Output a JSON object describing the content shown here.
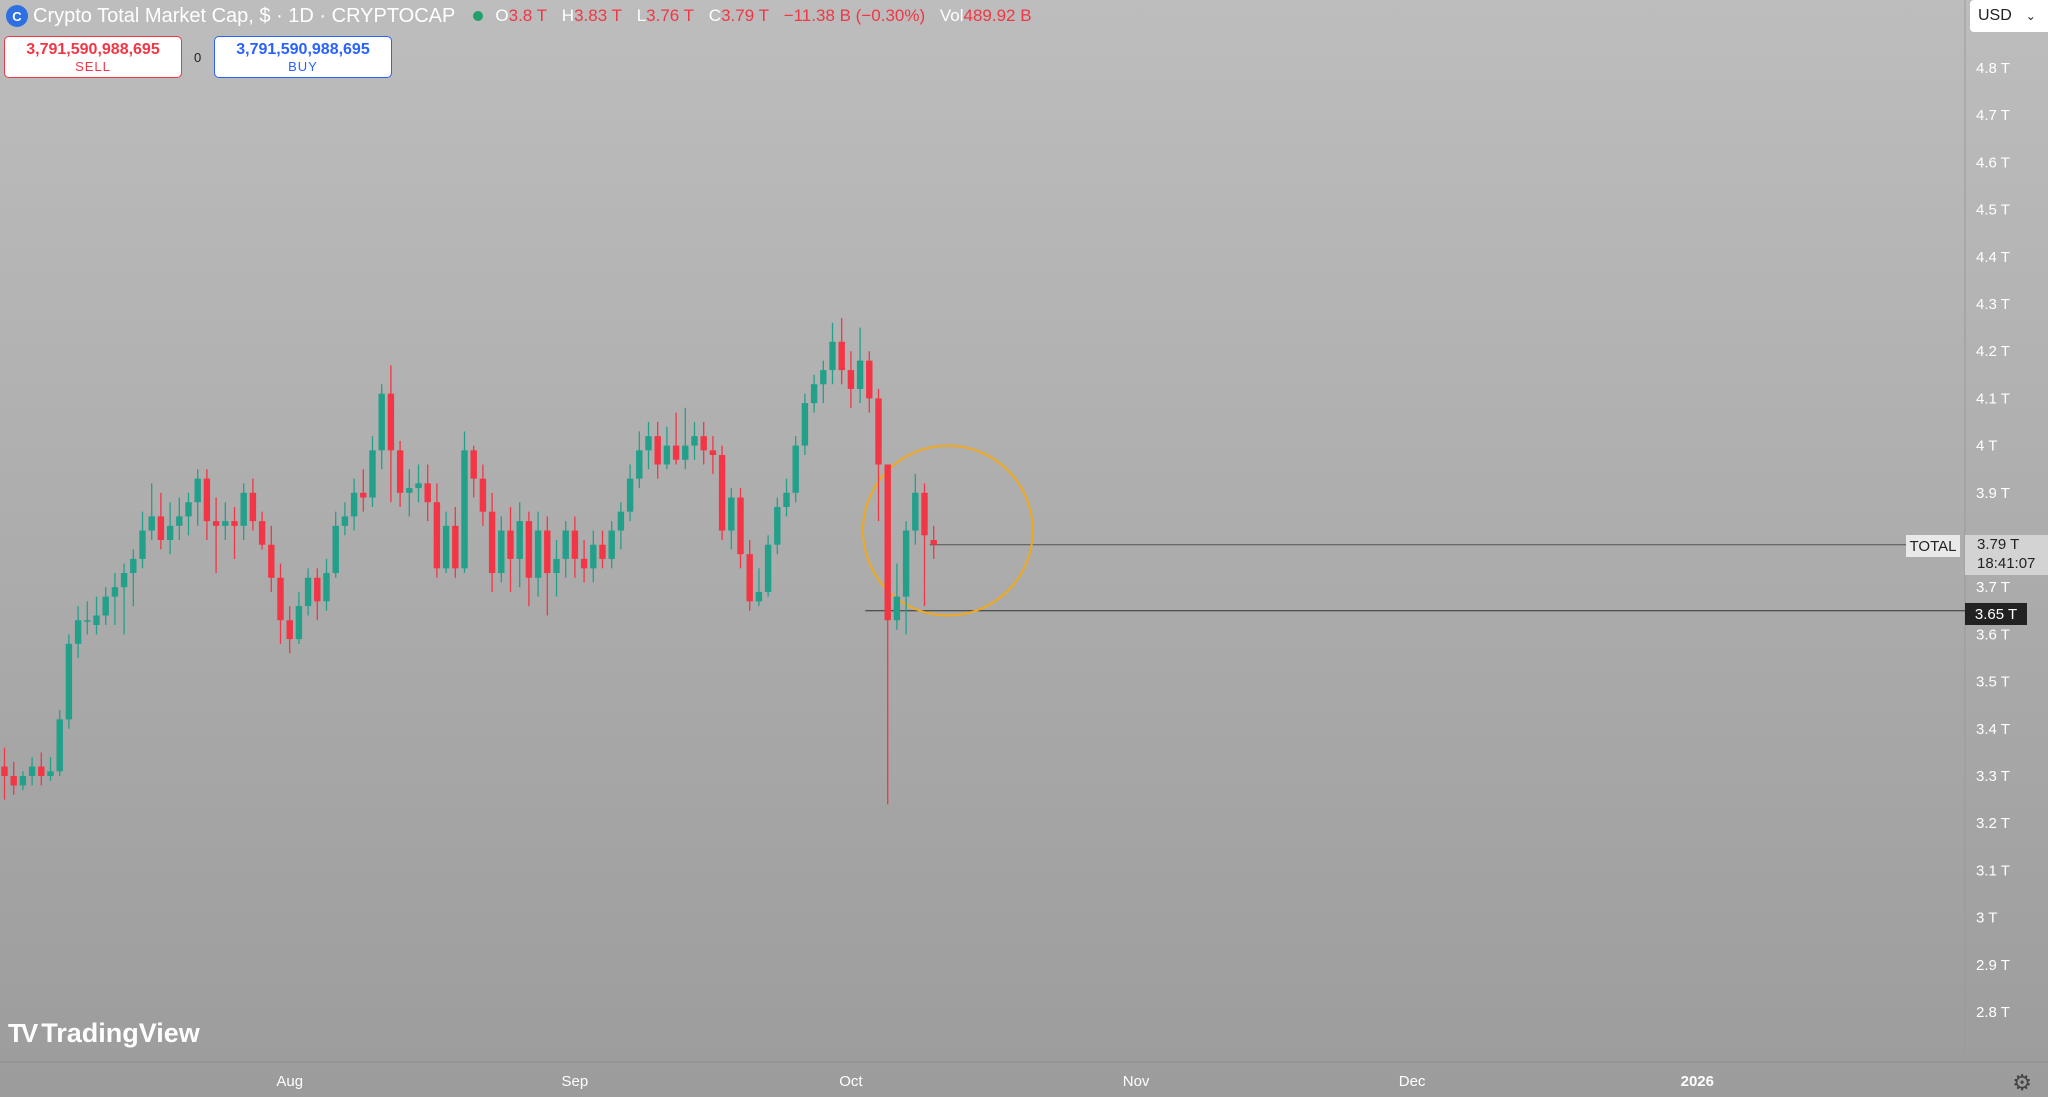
{
  "header": {
    "logo_glyph": "C",
    "symbol_title": "Crypto Total Market Cap, $ · 1D · CRYPTOCAP",
    "status_color": "#22a06b",
    "ohlc": [
      {
        "key": "O",
        "value": "3.8 T"
      },
      {
        "key": "H",
        "value": "3.83 T"
      },
      {
        "key": "L",
        "value": "3.76 T"
      },
      {
        "key": "C",
        "value": "3.79 T"
      },
      {
        "key": "",
        "value": "−11.38 B (−0.30%)"
      },
      {
        "key": "Vol",
        "value": "489.92 B"
      }
    ]
  },
  "trade": {
    "sell_price": "3,791,590,988,695",
    "sell_label": "SELL",
    "spread": "0",
    "buy_price": "3,791,590,988,695",
    "buy_label": "BUY"
  },
  "currency": {
    "value": "USD",
    "chevron_icon": "chevron-down-icon"
  },
  "branding": {
    "logo_text": "TradingView",
    "logo_mark": "TV-logo-icon"
  },
  "price_scale": {
    "series_tag": "TOTAL",
    "last_price": "3.79 T",
    "countdown": "18:41:07",
    "horizontal_line_price": "3.65 T"
  },
  "colors": {
    "up": "#22a08a",
    "down": "#f23645",
    "highlight_circle": "#f0a91e"
  },
  "chart_data": {
    "type": "candlestick",
    "title": "Crypto Total Market Cap, $ · 1D · CRYPTOCAP",
    "y_unit": "T",
    "ylim": [
      2.7,
      4.87
    ],
    "y_ticks": [
      "4.8 T",
      "4.7 T",
      "4.6 T",
      "4.5 T",
      "4.4 T",
      "4.3 T",
      "4.2 T",
      "4.1 T",
      "4 T",
      "3.9 T",
      "3.7 T",
      "3.6 T",
      "3.5 T",
      "3.4 T",
      "3.3 T",
      "3.2 T",
      "3.1 T",
      "3 T",
      "2.9 T",
      "2.8 T"
    ],
    "y_tick_values": [
      4.8,
      4.7,
      4.6,
      4.5,
      4.4,
      4.3,
      4.2,
      4.1,
      4.0,
      3.9,
      3.7,
      3.6,
      3.5,
      3.4,
      3.3,
      3.2,
      3.1,
      3.0,
      2.9,
      2.8
    ],
    "x_labels": [
      "Aug",
      "Sep",
      "Oct",
      "Nov",
      "Dec",
      "2026"
    ],
    "x_label_dates": [
      "2025-08-01",
      "2025-09-01",
      "2025-10-01",
      "2025-11-01",
      "2025-12-01",
      "2026-01-01"
    ],
    "first_date": "2025-07-01",
    "grid": false,
    "horizontal_lines": [
      {
        "label": "TOTAL",
        "value": 3.79
      },
      {
        "label": "3.65 T",
        "value": 3.65
      }
    ],
    "annotations": [
      {
        "type": "circle",
        "center_date": "2025-10-11",
        "center_value": 3.82,
        "radius_days": 6,
        "radius_value": 0.18
      }
    ],
    "candles": [
      [
        3.32,
        3.3,
        3.36,
        3.25
      ],
      [
        3.3,
        3.28,
        3.33,
        3.26
      ],
      [
        3.28,
        3.3,
        3.31,
        3.27
      ],
      [
        3.3,
        3.32,
        3.34,
        3.28
      ],
      [
        3.32,
        3.3,
        3.35,
        3.28
      ],
      [
        3.3,
        3.31,
        3.34,
        3.29
      ],
      [
        3.31,
        3.42,
        3.44,
        3.3
      ],
      [
        3.42,
        3.58,
        3.6,
        3.4
      ],
      [
        3.58,
        3.63,
        3.66,
        3.55
      ],
      [
        3.63,
        3.63,
        3.67,
        3.6
      ],
      [
        3.62,
        3.64,
        3.68,
        3.6
      ],
      [
        3.64,
        3.68,
        3.7,
        3.62
      ],
      [
        3.68,
        3.7,
        3.73,
        3.62
      ],
      [
        3.7,
        3.73,
        3.75,
        3.6
      ],
      [
        3.73,
        3.76,
        3.78,
        3.66
      ],
      [
        3.76,
        3.82,
        3.86,
        3.74
      ],
      [
        3.82,
        3.85,
        3.92,
        3.8
      ],
      [
        3.85,
        3.8,
        3.9,
        3.78
      ],
      [
        3.8,
        3.83,
        3.88,
        3.77
      ],
      [
        3.83,
        3.85,
        3.89,
        3.8
      ],
      [
        3.85,
        3.88,
        3.9,
        3.81
      ],
      [
        3.88,
        3.93,
        3.95,
        3.83
      ],
      [
        3.93,
        3.84,
        3.95,
        3.8
      ],
      [
        3.84,
        3.83,
        3.89,
        3.73
      ],
      [
        3.83,
        3.84,
        3.88,
        3.8
      ],
      [
        3.84,
        3.83,
        3.87,
        3.76
      ],
      [
        3.83,
        3.9,
        3.92,
        3.8
      ],
      [
        3.9,
        3.84,
        3.93,
        3.82
      ],
      [
        3.84,
        3.79,
        3.86,
        3.78
      ],
      [
        3.79,
        3.72,
        3.83,
        3.69
      ],
      [
        3.72,
        3.63,
        3.75,
        3.58
      ],
      [
        3.63,
        3.59,
        3.66,
        3.56
      ],
      [
        3.59,
        3.66,
        3.69,
        3.58
      ],
      [
        3.66,
        3.72,
        3.74,
        3.64
      ],
      [
        3.72,
        3.67,
        3.74,
        3.63
      ],
      [
        3.67,
        3.73,
        3.76,
        3.65
      ],
      [
        3.73,
        3.83,
        3.86,
        3.72
      ],
      [
        3.83,
        3.85,
        3.88,
        3.81
      ],
      [
        3.85,
        3.9,
        3.93,
        3.82
      ],
      [
        3.9,
        3.89,
        3.95,
        3.86
      ],
      [
        3.89,
        3.99,
        4.02,
        3.87
      ],
      [
        3.99,
        4.11,
        4.13,
        3.95
      ],
      [
        4.11,
        3.99,
        4.17,
        3.88
      ],
      [
        3.99,
        3.9,
        4.01,
        3.87
      ],
      [
        3.9,
        3.91,
        3.95,
        3.85
      ],
      [
        3.91,
        3.92,
        3.96,
        3.88
      ],
      [
        3.92,
        3.88,
        3.96,
        3.84
      ],
      [
        3.88,
        3.74,
        3.92,
        3.72
      ],
      [
        3.74,
        3.83,
        3.86,
        3.73
      ],
      [
        3.83,
        3.74,
        3.87,
        3.72
      ],
      [
        3.74,
        3.99,
        4.03,
        3.73
      ],
      [
        3.99,
        3.93,
        4.0,
        3.89
      ],
      [
        3.93,
        3.86,
        3.96,
        3.83
      ],
      [
        3.86,
        3.73,
        3.9,
        3.69
      ],
      [
        3.73,
        3.82,
        3.85,
        3.71
      ],
      [
        3.82,
        3.76,
        3.87,
        3.69
      ],
      [
        3.76,
        3.84,
        3.88,
        3.7
      ],
      [
        3.84,
        3.72,
        3.86,
        3.66
      ],
      [
        3.72,
        3.82,
        3.86,
        3.68
      ],
      [
        3.82,
        3.73,
        3.85,
        3.64
      ],
      [
        3.73,
        3.76,
        3.8,
        3.68
      ],
      [
        3.76,
        3.82,
        3.84,
        3.72
      ],
      [
        3.82,
        3.76,
        3.85,
        3.72
      ],
      [
        3.76,
        3.74,
        3.8,
        3.71
      ],
      [
        3.74,
        3.79,
        3.82,
        3.71
      ],
      [
        3.79,
        3.76,
        3.82,
        3.74
      ],
      [
        3.76,
        3.82,
        3.84,
        3.74
      ],
      [
        3.82,
        3.86,
        3.88,
        3.78
      ],
      [
        3.86,
        3.93,
        3.96,
        3.84
      ],
      [
        3.93,
        3.99,
        4.03,
        3.91
      ],
      [
        3.99,
        4.02,
        4.05,
        3.95
      ],
      [
        4.02,
        3.96,
        4.05,
        3.93
      ],
      [
        3.96,
        4.0,
        4.04,
        3.95
      ],
      [
        4.0,
        3.97,
        4.07,
        3.96
      ],
      [
        3.97,
        4.0,
        4.08,
        3.95
      ],
      [
        4.0,
        4.02,
        4.05,
        3.97
      ],
      [
        4.02,
        3.99,
        4.05,
        3.96
      ],
      [
        3.99,
        3.98,
        4.02,
        3.94
      ],
      [
        3.98,
        3.82,
        4.0,
        3.8
      ],
      [
        3.82,
        3.89,
        3.91,
        3.78
      ],
      [
        3.89,
        3.77,
        3.91,
        3.74
      ],
      [
        3.77,
        3.67,
        3.8,
        3.65
      ],
      [
        3.67,
        3.69,
        3.74,
        3.66
      ],
      [
        3.69,
        3.79,
        3.81,
        3.68
      ],
      [
        3.79,
        3.87,
        3.89,
        3.77
      ],
      [
        3.87,
        3.9,
        3.93,
        3.85
      ],
      [
        3.9,
        4.0,
        4.02,
        3.88
      ],
      [
        4.0,
        4.09,
        4.11,
        3.98
      ],
      [
        4.09,
        4.13,
        4.15,
        4.07
      ],
      [
        4.13,
        4.16,
        4.18,
        4.09
      ],
      [
        4.16,
        4.22,
        4.26,
        4.13
      ],
      [
        4.22,
        4.16,
        4.27,
        4.13
      ],
      [
        4.16,
        4.12,
        4.2,
        4.08
      ],
      [
        4.12,
        4.18,
        4.25,
        4.09
      ],
      [
        4.18,
        4.1,
        4.2,
        4.07
      ],
      [
        4.1,
        3.96,
        4.12,
        3.84
      ],
      [
        3.96,
        3.63,
        3.96,
        3.24
      ],
      [
        3.63,
        3.68,
        3.75,
        3.61
      ],
      [
        3.68,
        3.82,
        3.84,
        3.6
      ],
      [
        3.82,
        3.9,
        3.94,
        3.79
      ],
      [
        3.9,
        3.81,
        3.92,
        3.66
      ],
      [
        3.8,
        3.79,
        3.83,
        3.76
      ]
    ]
  }
}
